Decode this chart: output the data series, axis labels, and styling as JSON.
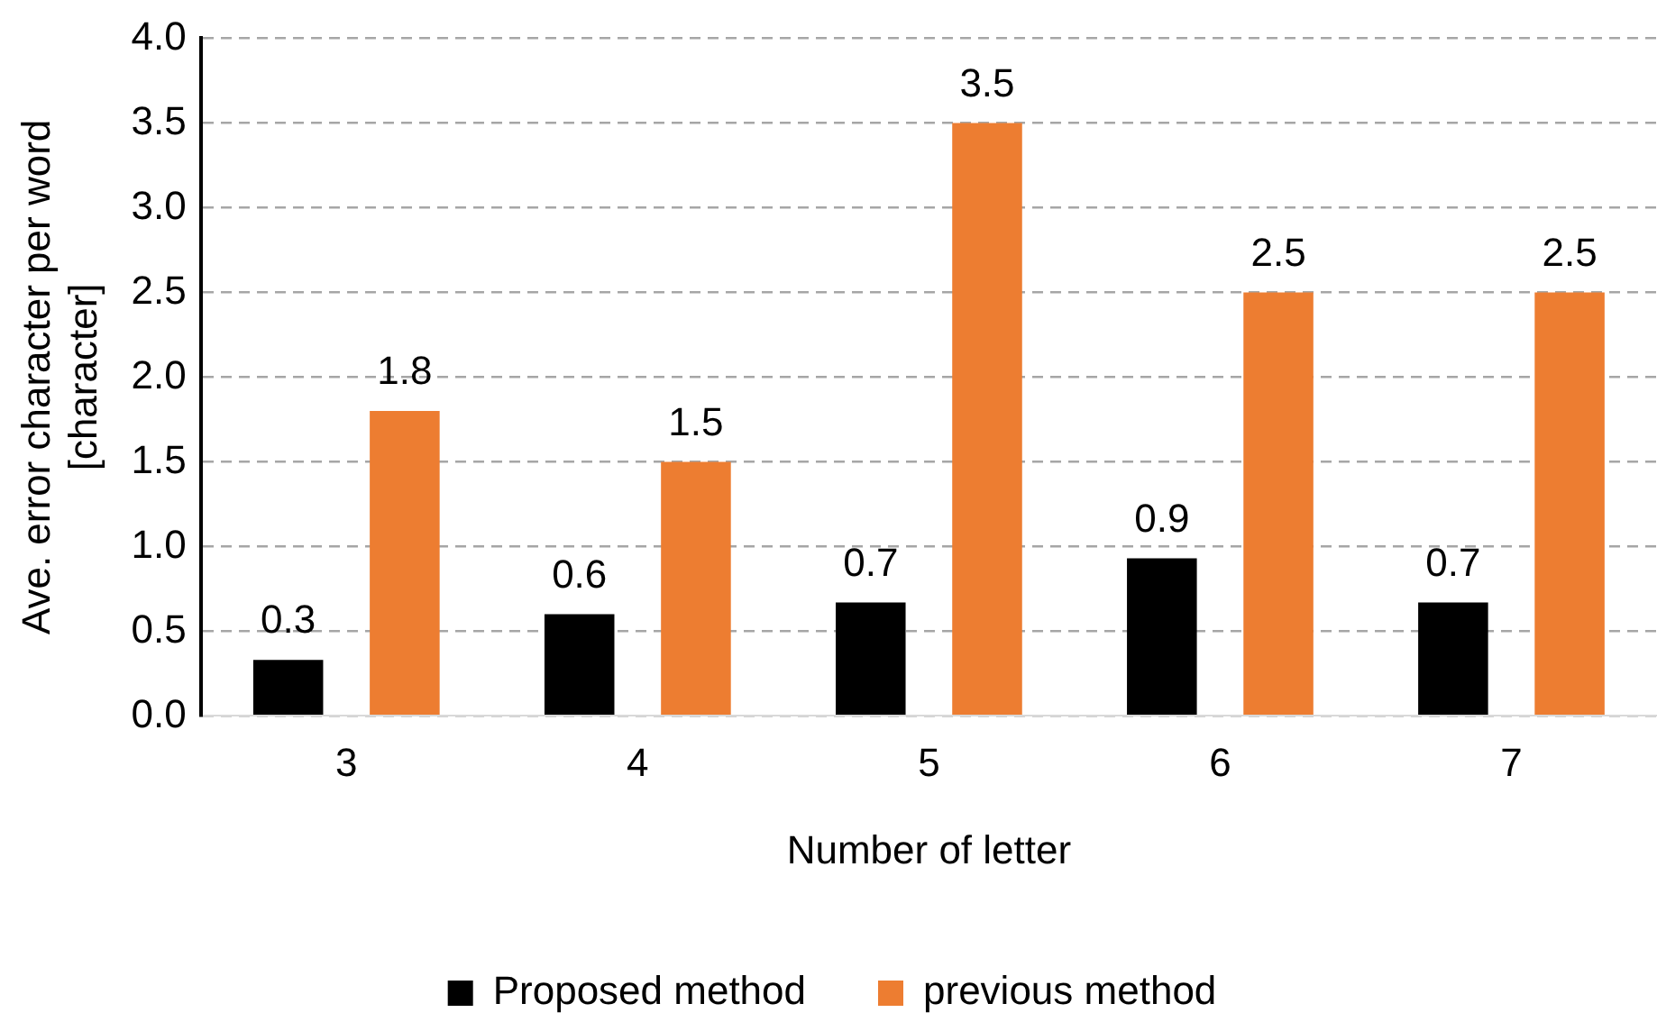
{
  "chart_data": {
    "type": "bar",
    "xlabel": "Number of letter",
    "ylabel": "Ave. error character per word\n[character]",
    "categories": [
      "3",
      "4",
      "5",
      "6",
      "7"
    ],
    "series": [
      {
        "name": "Proposed method",
        "color": "#000000",
        "values": [
          0.33,
          0.6,
          0.67,
          0.93,
          0.67
        ],
        "value_labels": [
          "0.3",
          "0.6",
          "0.7",
          "0.9",
          "0.7"
        ]
      },
      {
        "name": "previous method",
        "color": "#ed7d31",
        "values": [
          1.8,
          1.5,
          3.5,
          2.5,
          2.5
        ],
        "value_labels": [
          "1.8",
          "1.5",
          "3.5",
          "2.5",
          "2.5"
        ]
      }
    ],
    "ylim": [
      0,
      4
    ],
    "yticks": [
      {
        "value": 0,
        "label": "0.0"
      },
      {
        "value": 0.5,
        "label": "0.5"
      },
      {
        "value": 1,
        "label": "1.0"
      },
      {
        "value": 1.5,
        "label": "1.5"
      },
      {
        "value": 2,
        "label": "2.0"
      },
      {
        "value": 2.5,
        "label": "2.5"
      },
      {
        "value": 3,
        "label": "3.0"
      },
      {
        "value": 3.5,
        "label": "3.5"
      },
      {
        "value": 4,
        "label": "4.0"
      }
    ],
    "grid": "y",
    "legend": "bottom"
  }
}
